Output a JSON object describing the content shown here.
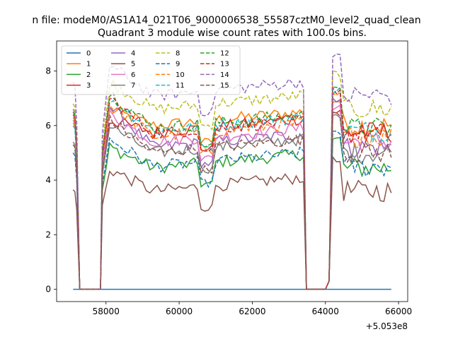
{
  "chart_data": {
    "type": "line",
    "suptitle": "n file: modeM0/AS1A14_021T06_9000006538_55587cztM0_level2_quad_clean",
    "title": "Quadrant 3 module wise count rates with 100.0s bins.",
    "xlabel": "",
    "ylabel": "",
    "x_offset_label": "+5.053e8",
    "xlim": [
      56650,
      66250
    ],
    "ylim": [
      -0.45,
      9.1
    ],
    "xticks": [
      58000,
      60000,
      62000,
      64000,
      66000
    ],
    "xtick_labels": [
      "58000",
      "60000",
      "62000",
      "64000",
      "66000"
    ],
    "yticks": [
      0,
      2,
      4,
      6,
      8
    ],
    "ytick_labels": [
      "0",
      "2",
      "4",
      "6",
      "8"
    ],
    "grid": false,
    "legend": {
      "placement": "top-left",
      "columns": 4
    },
    "segments": [
      {
        "start": 57100,
        "end": 57200
      },
      {
        "start": 57900,
        "end": 63400
      },
      {
        "start": 64200,
        "end": 65800
      }
    ],
    "series": [
      {
        "name": "0",
        "color": "#1f77b4",
        "dash": false,
        "base": 0.0,
        "initial": 0.0,
        "first_peak": 0.0
      },
      {
        "name": "1",
        "color": "#ff7f0e",
        "dash": false,
        "base": 6.0,
        "initial": 6.3,
        "first_peak": 6.6
      },
      {
        "name": "2",
        "color": "#2ca02c",
        "dash": false,
        "base": 4.45,
        "initial": 6.2,
        "first_peak": 5.2
      },
      {
        "name": "3",
        "color": "#d62728",
        "dash": false,
        "base": 5.75,
        "initial": 6.5,
        "first_peak": 6.2
      },
      {
        "name": "4",
        "color": "#9467bd",
        "dash": false,
        "base": 5.2,
        "initial": 6.6,
        "first_peak": 6.7
      },
      {
        "name": "5",
        "color": "#8c564b",
        "dash": false,
        "base": 3.6,
        "initial": 3.65,
        "first_peak": 4.4
      },
      {
        "name": "6",
        "color": "#e377c2",
        "dash": false,
        "base": 5.4,
        "initial": 6.2,
        "first_peak": 6.4
      },
      {
        "name": "7",
        "color": "#7f7f7f",
        "dash": false,
        "base": 5.0,
        "initial": 5.4,
        "first_peak": 6.0
      },
      {
        "name": "8",
        "color": "#bcbd22",
        "dash": true,
        "base": 6.6,
        "initial": 6.8,
        "first_peak": 7.6
      },
      {
        "name": "9",
        "color": "#1f77b4",
        "dash": true,
        "base": 4.5,
        "initial": 5.0,
        "first_peak": 5.5
      },
      {
        "name": "10",
        "color": "#ff7f0e",
        "dash": true,
        "base": 5.6,
        "initial": 6.1,
        "first_peak": 6.8
      },
      {
        "name": "11",
        "color": "#17becf",
        "dash": true,
        "base": 5.8,
        "initial": 6.0,
        "first_peak": 7.0
      },
      {
        "name": "12",
        "color": "#2ca02c",
        "dash": true,
        "base": 5.9,
        "initial": 6.5,
        "first_peak": 7.2
      },
      {
        "name": "13",
        "color": "#d62728",
        "dash": true,
        "base": 5.7,
        "initial": 6.4,
        "first_peak": 7.0
      },
      {
        "name": "14",
        "color": "#9467bd",
        "dash": true,
        "base": 7.1,
        "initial": 7.6,
        "first_peak": 8.2
      },
      {
        "name": "15",
        "color": "#8c564b",
        "dash": true,
        "base": 5.0,
        "initial": 5.3,
        "first_peak": 6.2
      }
    ]
  }
}
